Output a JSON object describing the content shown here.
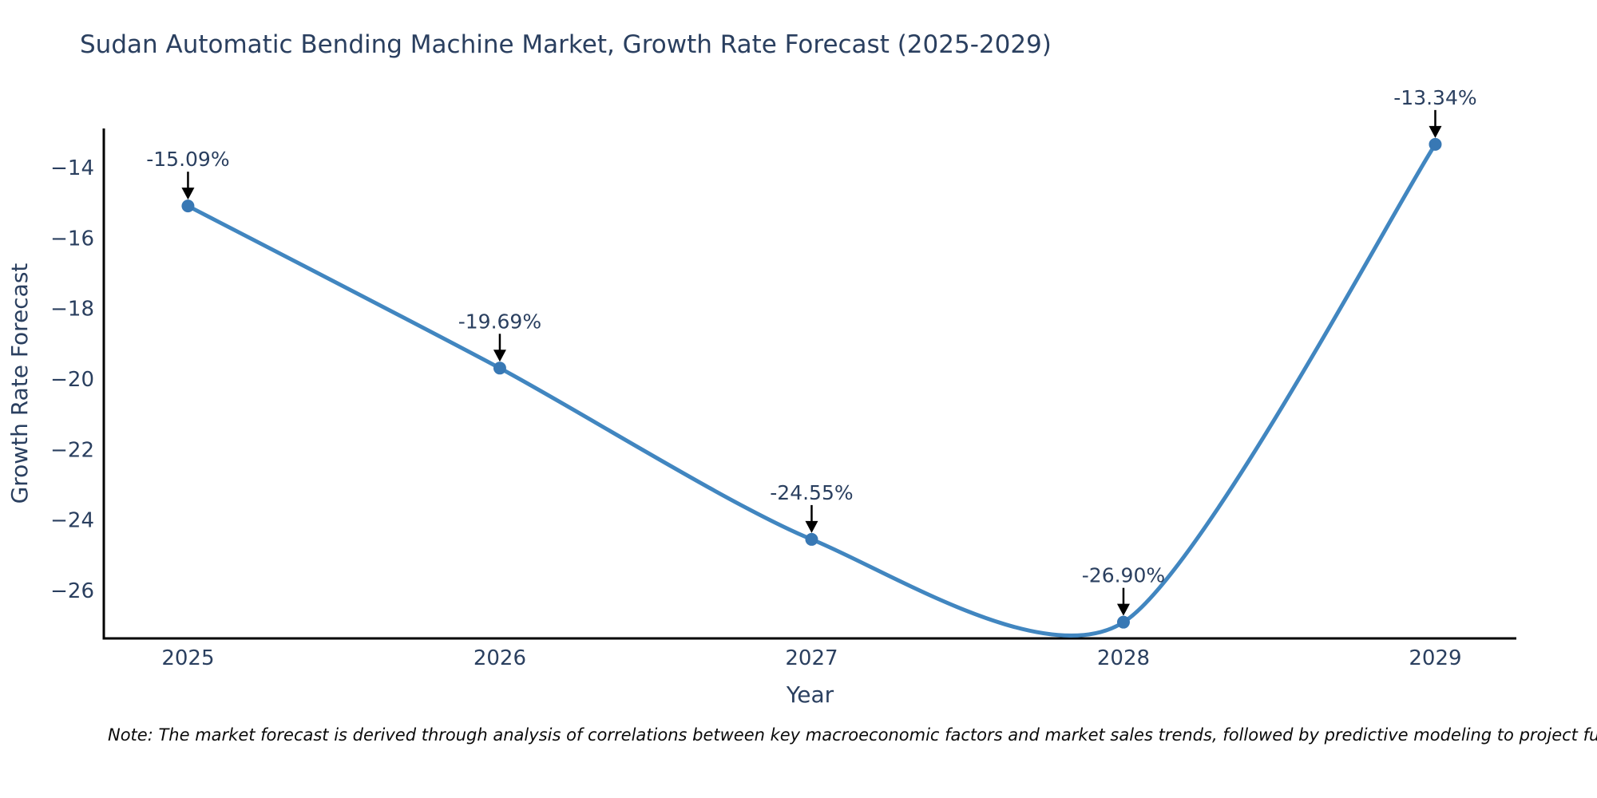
{
  "title": "Sudan Automatic Bending Machine Market, Growth Rate Forecast (2025-2029)",
  "note": "Note: The market forecast is derived through analysis of correlations between key macroeconomic factors and market sales trends, followed by predictive modeling to project future sales performance.",
  "chart_data": {
    "type": "line",
    "title": "Sudan Automatic Bending Machine Market, Growth Rate Forecast (2025-2029)",
    "xlabel": "Year",
    "ylabel": "Growth Rate Forecast",
    "x": [
      2025,
      2026,
      2027,
      2028,
      2029
    ],
    "y": [
      -15.09,
      -19.69,
      -24.55,
      -26.9,
      -13.34
    ],
    "point_labels": [
      "-15.09%",
      "-19.69%",
      "-24.55%",
      "-26.90%",
      "-13.34%"
    ],
    "xticklabels": [
      "2025",
      "2026",
      "2027",
      "2028",
      "2029"
    ],
    "yticks": [
      -14,
      -16,
      -18,
      -20,
      -22,
      -24,
      -26
    ],
    "yticklabels": [
      "−14",
      "−16",
      "−18",
      "−20",
      "−22",
      "−24",
      "−26"
    ],
    "xlim": [
      2024.73,
      2029.26
    ],
    "ylim": [
      -27.36,
      -12.89
    ],
    "grid": false,
    "line_shape": "spline",
    "legend": "none",
    "colors": {
      "line": "#4186c0",
      "marker": "#3878b4",
      "axis": "#000000",
      "tick_text": "#2a3f5f",
      "title_text": "#2a3f5f",
      "annotation_text": "#2a3f5f",
      "arrow": "#000000"
    }
  }
}
